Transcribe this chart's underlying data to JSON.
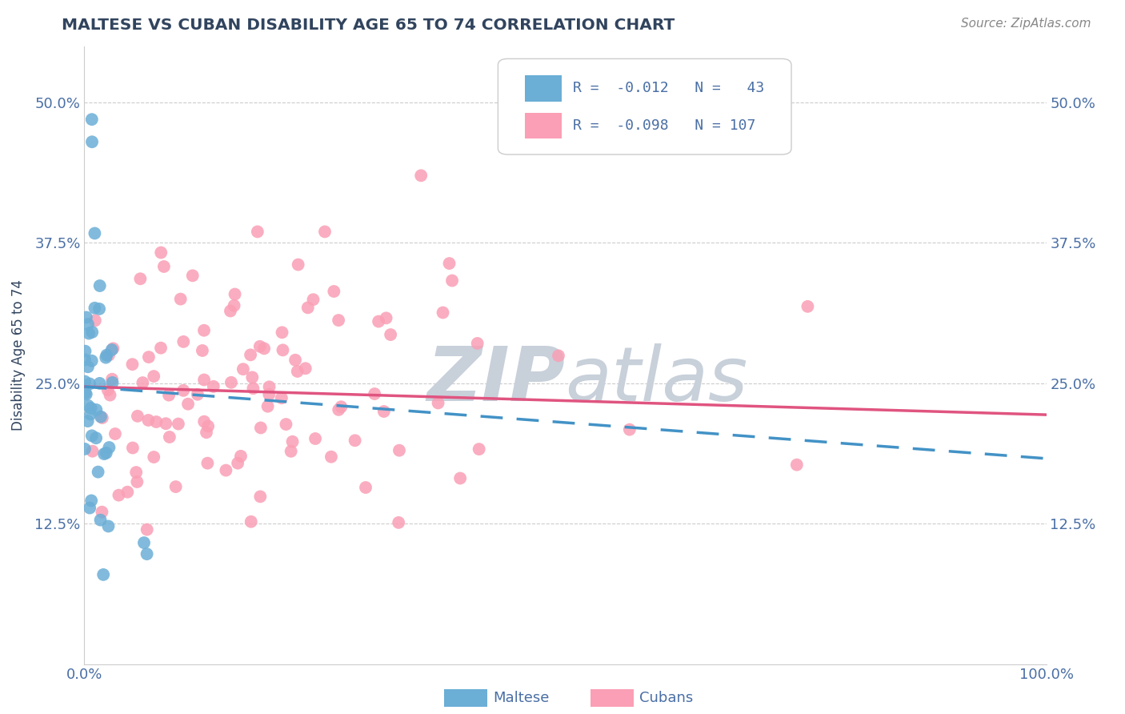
{
  "title": "MALTESE VS CUBAN DISABILITY AGE 65 TO 74 CORRELATION CHART",
  "source_text": "Source: ZipAtlas.com",
  "ylabel": "Disability Age 65 to 74",
  "xlim": [
    0.0,
    1.0
  ],
  "ylim": [
    0.0,
    0.55
  ],
  "x_ticks": [
    0.0,
    1.0
  ],
  "x_tick_labels": [
    "0.0%",
    "100.0%"
  ],
  "y_ticks": [
    0.125,
    0.25,
    0.375,
    0.5
  ],
  "y_tick_labels": [
    "12.5%",
    "25.0%",
    "37.5%",
    "50.0%"
  ],
  "maltese_R": -0.012,
  "maltese_N": 43,
  "cuban_R": -0.098,
  "cuban_N": 107,
  "maltese_color": "#6baed6",
  "cuban_color": "#fa9fb5",
  "maltese_line_color": "#4292c6",
  "cuban_line_color": "#e05480",
  "background_color": "#ffffff",
  "grid_color": "#cccccc",
  "title_color": "#31445e",
  "axis_label_color": "#31445e",
  "tick_color": "#4a6fa5",
  "watermark_color": "#c8d0da",
  "legend_text_color": "#4a6fa5",
  "legend_border_color": "#cccccc",
  "maltese_trend_start": 0.247,
  "maltese_trend_end": 0.183,
  "cuban_trend_start": 0.247,
  "cuban_trend_end": 0.222
}
